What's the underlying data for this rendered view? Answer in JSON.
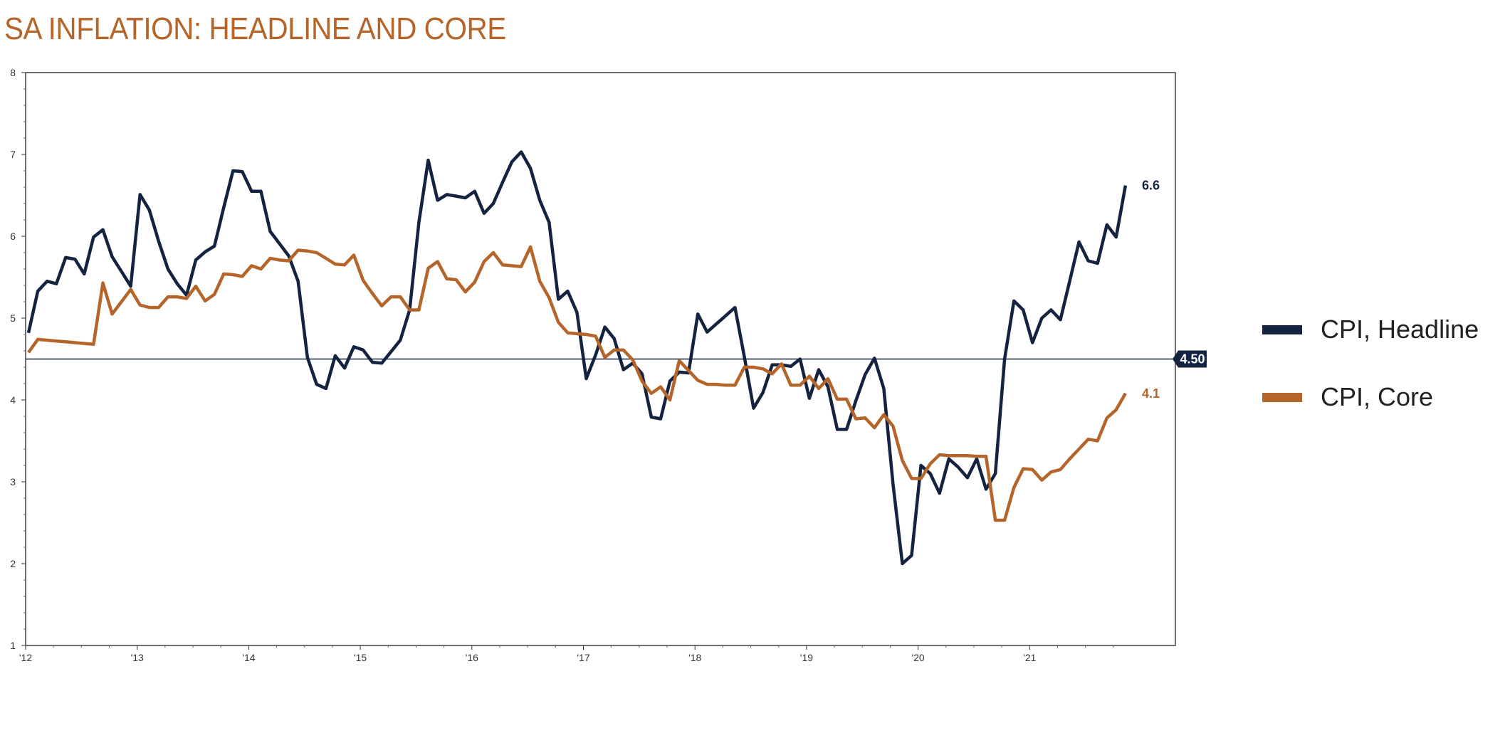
{
  "title": "SA INFLATION: HEADLINE AND CORE",
  "chart_data": {
    "type": "line",
    "title": "SA INFLATION: HEADLINE AND CORE",
    "xlabel": "",
    "ylabel": "",
    "ylim": [
      1,
      8
    ],
    "yticks": [
      "1",
      "2",
      "3",
      "4",
      "5",
      "6",
      "7",
      "8"
    ],
    "xticks": [
      "'12",
      "'13",
      "'14",
      "'15",
      "'16",
      "'17",
      "'18",
      "'19",
      "'20",
      "'21"
    ],
    "start": "2012-01",
    "frequency": "monthly",
    "grid": false,
    "legend": "right",
    "reference_line": {
      "value": 4.5,
      "label": "4.50",
      "color": "#14233f"
    },
    "series": [
      {
        "name": "CPI, Headline",
        "color": "#14233f",
        "end_label": "6.6",
        "values": [
          4.82,
          5.33,
          5.45,
          5.42,
          5.74,
          5.72,
          5.54,
          5.99,
          6.08,
          5.75,
          5.57,
          5.39,
          6.51,
          6.32,
          5.94,
          5.6,
          5.42,
          5.28,
          5.71,
          5.81,
          5.88,
          6.35,
          6.8,
          6.79,
          6.55,
          6.55,
          6.06,
          5.91,
          5.76,
          5.45,
          4.52,
          4.19,
          4.14,
          4.54,
          4.39,
          4.65,
          4.61,
          4.46,
          4.45,
          4.59,
          4.73,
          5.1,
          6.17,
          6.93,
          6.44,
          6.51,
          6.49,
          6.47,
          6.55,
          6.28,
          6.4,
          6.66,
          6.91,
          7.03,
          6.83,
          6.44,
          6.17,
          5.23,
          5.33,
          5.07,
          4.26,
          4.55,
          4.89,
          4.75,
          4.37,
          4.45,
          4.32,
          3.79,
          3.77,
          4.23,
          4.34,
          4.33,
          5.05,
          4.83,
          4.93,
          5.03,
          5.13,
          4.53,
          3.9,
          4.09,
          4.43,
          4.43,
          4.41,
          4.5,
          4.02,
          4.37,
          4.16,
          3.64,
          3.64,
          3.99,
          4.31,
          4.51,
          4.14,
          2.97,
          2.0,
          2.1,
          3.2,
          3.1,
          2.86,
          3.28,
          3.18,
          3.05,
          3.28,
          2.91,
          3.1,
          4.5,
          5.21,
          5.1,
          4.7,
          5.0,
          5.1,
          4.98,
          5.45,
          5.93,
          5.7,
          5.67,
          6.14,
          5.99,
          6.62
        ]
      },
      {
        "name": "CPI, Core",
        "color": "#b5652a",
        "end_label": "4.1",
        "values": [
          4.58,
          4.74,
          4.73,
          4.72,
          4.71,
          4.7,
          4.69,
          4.68,
          5.43,
          5.05,
          5.2,
          5.35,
          5.16,
          5.13,
          5.13,
          5.26,
          5.26,
          5.24,
          5.39,
          5.21,
          5.29,
          5.54,
          5.53,
          5.51,
          5.64,
          5.6,
          5.73,
          5.71,
          5.7,
          5.83,
          5.82,
          5.8,
          5.73,
          5.66,
          5.65,
          5.77,
          5.46,
          5.3,
          5.15,
          5.26,
          5.26,
          5.1,
          5.1,
          5.61,
          5.69,
          5.48,
          5.47,
          5.32,
          5.44,
          5.69,
          5.8,
          5.65,
          5.64,
          5.63,
          5.87,
          5.45,
          5.25,
          4.95,
          4.82,
          4.81,
          4.8,
          4.78,
          4.52,
          4.61,
          4.61,
          4.49,
          4.23,
          4.08,
          4.16,
          4.0,
          4.48,
          4.36,
          4.24,
          4.19,
          4.19,
          4.18,
          4.18,
          4.4,
          4.4,
          4.38,
          4.32,
          4.44,
          4.18,
          4.18,
          4.29,
          4.14,
          4.26,
          4.01,
          4.01,
          3.77,
          3.78,
          3.66,
          3.82,
          3.68,
          3.26,
          3.04,
          3.04,
          3.22,
          3.33,
          3.32,
          3.32,
          3.32,
          3.31,
          3.31,
          2.53,
          2.53,
          2.93,
          3.16,
          3.15,
          3.02,
          3.12,
          3.15,
          3.28,
          3.4,
          3.52,
          3.5,
          3.78,
          3.88,
          4.08
        ]
      }
    ]
  }
}
